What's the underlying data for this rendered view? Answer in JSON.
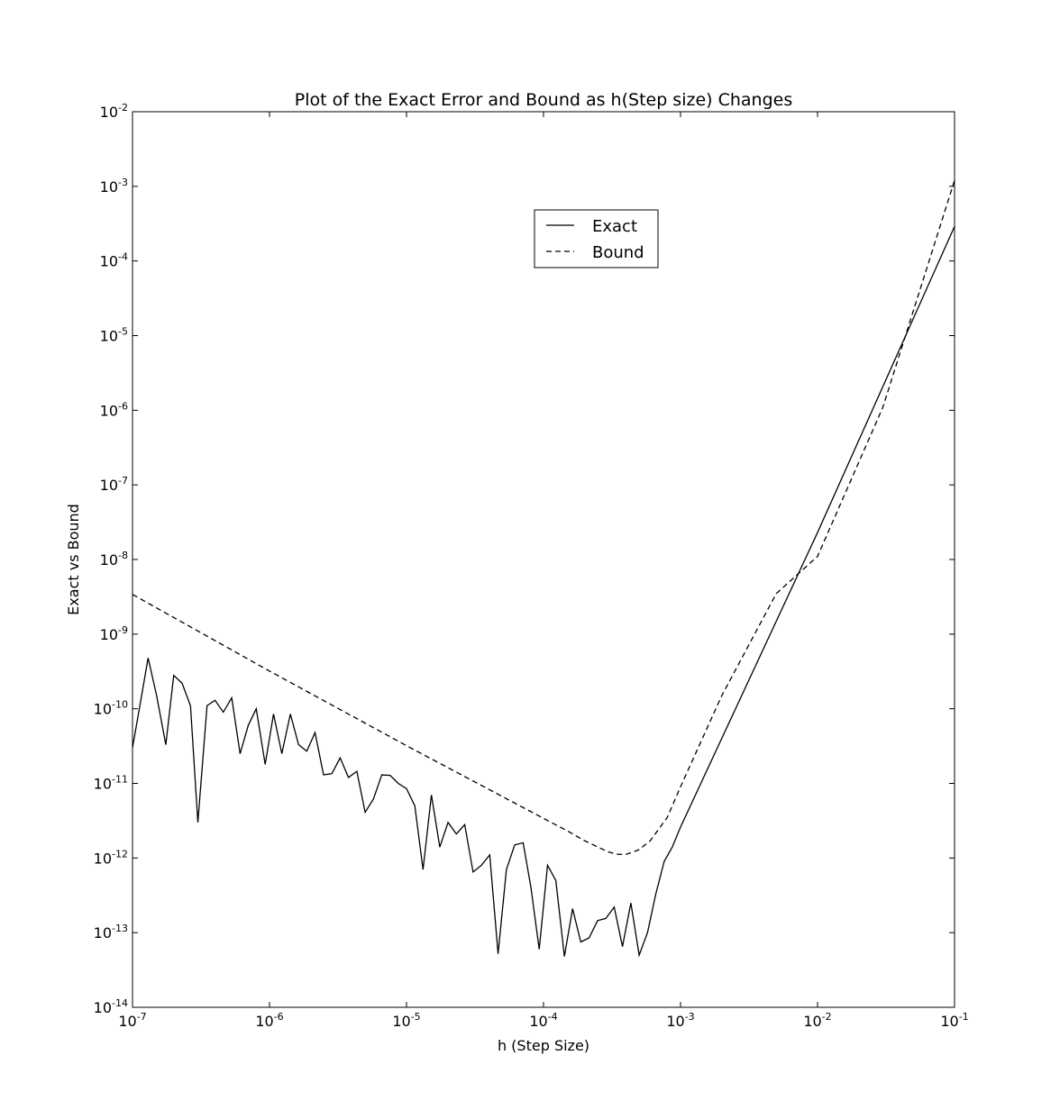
{
  "chart_data": {
    "type": "line",
    "title": "Plot of the Exact Error and Bound as h(Step size) Changes",
    "xlabel": "h (Step Size)",
    "ylabel": "Exact vs Bound",
    "xscale": "log",
    "yscale": "log",
    "xlim": [
      1e-07,
      0.1
    ],
    "ylim": [
      1e-14,
      0.01
    ],
    "grid": false,
    "legend_position": "upper center",
    "x_ticks": [
      {
        "base": "10",
        "exp": "-7",
        "value": 1e-07
      },
      {
        "base": "10",
        "exp": "-6",
        "value": 1e-06
      },
      {
        "base": "10",
        "exp": "-5",
        "value": 1e-05
      },
      {
        "base": "10",
        "exp": "-4",
        "value": 0.0001
      },
      {
        "base": "10",
        "exp": "-3",
        "value": 0.001
      },
      {
        "base": "10",
        "exp": "-2",
        "value": 0.01
      },
      {
        "base": "10",
        "exp": "-1",
        "value": 0.1
      }
    ],
    "y_ticks": [
      {
        "base": "10",
        "exp": "-14",
        "value": 1e-14
      },
      {
        "base": "10",
        "exp": "-13",
        "value": 1e-13
      },
      {
        "base": "10",
        "exp": "-12",
        "value": 1e-12
      },
      {
        "base": "10",
        "exp": "-11",
        "value": 1e-11
      },
      {
        "base": "10",
        "exp": "-10",
        "value": 1e-10
      },
      {
        "base": "10",
        "exp": "-9",
        "value": 1e-09
      },
      {
        "base": "10",
        "exp": "-8",
        "value": 1e-08
      },
      {
        "base": "10",
        "exp": "-7",
        "value": 1e-07
      },
      {
        "base": "10",
        "exp": "-6",
        "value": 1e-06
      },
      {
        "base": "10",
        "exp": "-5",
        "value": 1e-05
      },
      {
        "base": "10",
        "exp": "-4",
        "value": 0.0001
      },
      {
        "base": "10",
        "exp": "-3",
        "value": 0.001
      },
      {
        "base": "10",
        "exp": "-2",
        "value": 0.01
      }
    ],
    "series": [
      {
        "name": "Exact",
        "style": "solid",
        "color": "#000000",
        "x": [
          1e-07,
          1.15e-07,
          1.3e-07,
          1.5e-07,
          1.75e-07,
          2e-07,
          2.3e-07,
          2.65e-07,
          3e-07,
          3.5e-07,
          4e-07,
          4.6e-07,
          5.3e-07,
          6.1e-07,
          7e-07,
          8e-07,
          9.3e-07,
          1.07e-06,
          1.23e-06,
          1.42e-06,
          1.63e-06,
          1.87e-06,
          2.15e-06,
          2.48e-06,
          2.85e-06,
          3.28e-06,
          3.77e-06,
          4.34e-06,
          4.99e-06,
          5.74e-06,
          6.6e-06,
          7.6e-06,
          8.7e-06,
          1e-05,
          1.15e-05,
          1.32e-05,
          1.52e-05,
          1.75e-05,
          2.01e-05,
          2.31e-05,
          2.66e-05,
          3.06e-05,
          3.52e-05,
          4.05e-05,
          4.66e-05,
          5.36e-05,
          6.16e-05,
          7.1e-05,
          8.1e-05,
          9.3e-05,
          0.000107,
          0.000123,
          0.000142,
          0.000163,
          0.000187,
          0.000215,
          0.000248,
          0.000285,
          0.000328,
          0.000377,
          0.000434,
          0.000499,
          0.000574,
          0.00066,
          0.00076,
          0.00087,
          0.001,
          0.01,
          0.1
        ],
        "y": [
          3e-11,
          1.3e-10,
          4.8e-10,
          1.5e-10,
          3.3e-11,
          2.8e-10,
          2.2e-10,
          1.1e-10,
          3e-12,
          1.1e-10,
          1.3e-10,
          9e-11,
          1.4e-10,
          2.5e-11,
          6e-11,
          1e-10,
          1.8e-11,
          8.5e-11,
          2.5e-11,
          8.5e-11,
          3.3e-11,
          2.7e-11,
          4.8e-11,
          1.3e-11,
          1.35e-11,
          2.2e-11,
          1.2e-11,
          1.45e-11,
          4.1e-12,
          6.2e-12,
          1.3e-11,
          1.28e-11,
          1e-11,
          8.5e-12,
          5e-12,
          7e-13,
          7e-12,
          1.4e-12,
          3e-12,
          2.1e-12,
          2.8e-12,
          6.5e-13,
          8e-13,
          1.1e-12,
          5.2e-14,
          7e-13,
          1.5e-12,
          1.6e-12,
          4e-13,
          6e-14,
          8e-13,
          5e-13,
          4.8e-14,
          2.1e-13,
          7.5e-14,
          8.5e-14,
          1.45e-13,
          1.55e-13,
          2.2e-13,
          6.5e-14,
          2.5e-13,
          5e-14,
          1e-13,
          3.3e-13,
          9e-13,
          1.4e-12,
          2.6e-12,
          2.3e-08,
          0.00029
        ]
      },
      {
        "name": "Bound",
        "style": "dashed",
        "color": "#000000",
        "x": [
          1e-07,
          1e-06,
          1e-05,
          0.0001,
          0.00015,
          0.0002,
          0.00025,
          0.0003,
          0.00035,
          0.0004,
          0.00045,
          0.0005,
          0.0006,
          0.0007,
          0.0008,
          0.001,
          0.002,
          0.005,
          0.01,
          0.03,
          0.1
        ],
        "y": [
          3.4e-09,
          3.2e-10,
          3.2e-11,
          3.4e-12,
          2.3e-12,
          1.7e-12,
          1.4e-12,
          1.2e-12,
          1.12e-12,
          1.12e-12,
          1.2e-12,
          1.3e-12,
          1.7e-12,
          2.5e-12,
          3.5e-12,
          9e-12,
          1.5e-10,
          3.5e-09,
          1.1e-08,
          1.1e-06,
          0.0012
        ]
      }
    ]
  }
}
